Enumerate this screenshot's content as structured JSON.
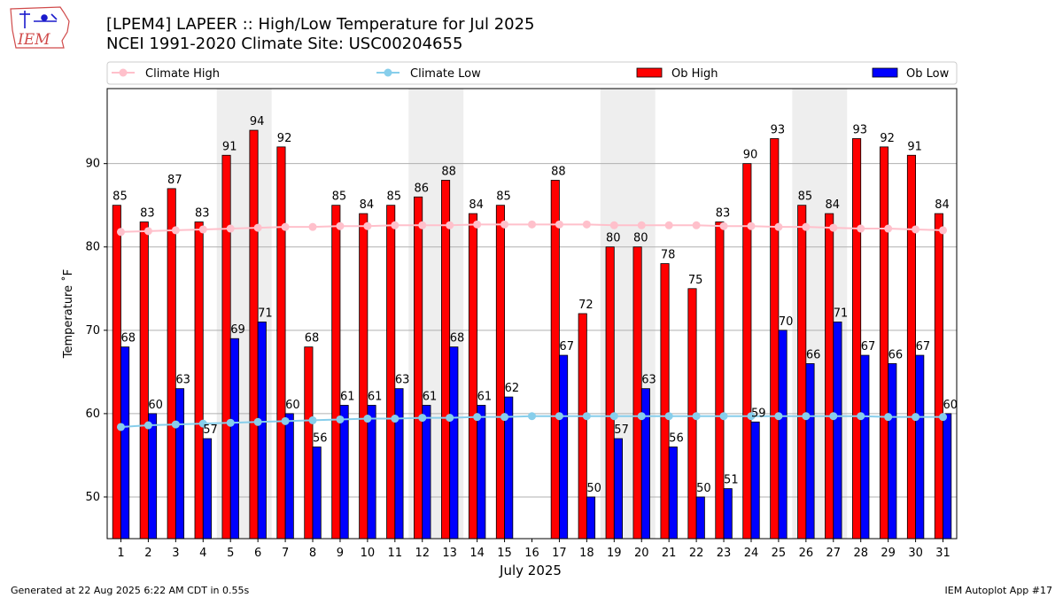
{
  "logo": {
    "text": "IEM"
  },
  "footer": {
    "generated": "Generated at 22 Aug 2025 6:22 AM CDT in 0.55s",
    "app": "IEM Autoplot App #17"
  },
  "chart_data": {
    "type": "bar",
    "title": "[LPEM4] LAPEER :: High/Low Temperature for Jul 2025",
    "subtitle": "NCEI 1991-2020 Climate Site: USC00204655",
    "xlabel": "July 2025",
    "ylabel": "Temperature ˚F",
    "ylim": [
      45,
      99
    ],
    "yticks": [
      50,
      60,
      70,
      80,
      90
    ],
    "grid": true,
    "legend_position": "top",
    "categories": [
      "1",
      "2",
      "3",
      "4",
      "5",
      "6",
      "7",
      "8",
      "9",
      "10",
      "11",
      "12",
      "13",
      "14",
      "15",
      "16",
      "17",
      "18",
      "19",
      "20",
      "21",
      "22",
      "23",
      "24",
      "25",
      "26",
      "27",
      "28",
      "29",
      "30",
      "31"
    ],
    "weekend_bands": [
      [
        5,
        6
      ],
      [
        12,
        13
      ],
      [
        19,
        20
      ],
      [
        26,
        27
      ]
    ],
    "series": [
      {
        "name": "Climate High",
        "kind": "line",
        "color": "#ffc0cb",
        "values": [
          81.8,
          81.9,
          82.0,
          82.1,
          82.2,
          82.3,
          82.4,
          82.4,
          82.5,
          82.5,
          82.6,
          82.6,
          82.6,
          82.7,
          82.7,
          82.7,
          82.7,
          82.7,
          82.6,
          82.6,
          82.6,
          82.6,
          82.5,
          82.5,
          82.4,
          82.4,
          82.3,
          82.2,
          82.2,
          82.1,
          82.0
        ]
      },
      {
        "name": "Climate Low",
        "kind": "line",
        "color": "#87ceeb",
        "values": [
          58.4,
          58.6,
          58.7,
          58.8,
          58.9,
          59.0,
          59.1,
          59.2,
          59.3,
          59.4,
          59.4,
          59.5,
          59.5,
          59.6,
          59.6,
          59.7,
          59.7,
          59.7,
          59.7,
          59.7,
          59.7,
          59.7,
          59.7,
          59.7,
          59.7,
          59.7,
          59.7,
          59.7,
          59.6,
          59.6,
          59.6
        ]
      },
      {
        "name": "Ob High",
        "kind": "bar",
        "color": "#ff0000",
        "values": [
          85,
          83,
          87,
          83,
          91,
          94,
          92,
          68,
          85,
          84,
          85,
          86,
          88,
          84,
          85,
          null,
          88,
          72,
          80,
          80,
          78,
          75,
          83,
          90,
          93,
          85,
          84,
          93,
          92,
          91,
          84
        ]
      },
      {
        "name": "Ob Low",
        "kind": "bar",
        "color": "#0000ff",
        "values": [
          68,
          60,
          63,
          57,
          69,
          71,
          60,
          56,
          61,
          61,
          63,
          61,
          68,
          61,
          62,
          null,
          67,
          50,
          57,
          63,
          56,
          50,
          51,
          59,
          70,
          66,
          71,
          67,
          66,
          67,
          60
        ]
      }
    ]
  }
}
